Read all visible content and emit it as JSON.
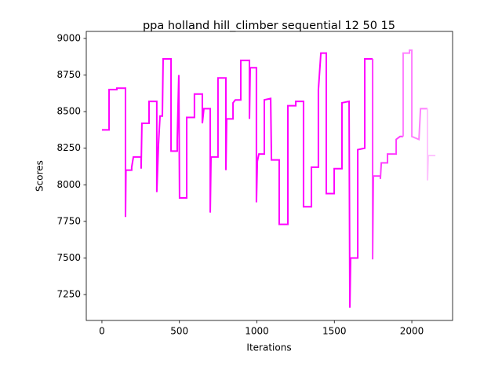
{
  "chart_data": {
    "type": "line",
    "title": "ppa holland hill_climber sequential 12 50 15",
    "xlabel": "Iterations",
    "ylabel": "Scores",
    "xlim": [
      -101,
      2263
    ],
    "ylim": [
      7073,
      9048
    ],
    "xticks": [
      0,
      500,
      1000,
      1500,
      2000
    ],
    "yticks": [
      7250,
      7500,
      7750,
      8000,
      8250,
      8500,
      8750,
      9000
    ],
    "grid": false,
    "series": [
      {
        "color": "#ff00ff",
        "x": [
          0,
          46,
          46,
          96,
          96,
          152,
          152,
          155,
          192,
          192,
          203,
          253,
          253,
          258,
          304,
          304,
          354,
          354,
          365,
          375,
          390,
          395,
          446,
          446,
          486,
          486,
          496,
          501,
          547,
          547,
          597,
          597,
          648,
          648,
          658,
          699,
          699,
          704,
          749,
          749,
          800,
          800,
          805,
          846,
          846,
          861,
          896,
          896,
          952,
          952,
          957,
          997,
          997,
          1003,
          1013,
          1048,
          1048,
          1089,
          1094,
          1144,
          1144,
          1200,
          1200,
          1251,
          1251,
          1301,
          1301,
          1352,
          1352,
          1397,
          1397,
          1413,
          1448,
          1448,
          1499,
          1499,
          1549,
          1549,
          1595,
          1600,
          1605,
          1651,
          1651,
          1696,
          1696,
          1747
        ],
        "values": [
          8375,
          8375,
          8650,
          8650,
          8660,
          8660,
          7780,
          8100,
          8100,
          8120,
          8190,
          8190,
          8110,
          8420,
          8420,
          8570,
          8570,
          7950,
          8280,
          8470,
          8470,
          8860,
          8860,
          8230,
          8230,
          8300,
          8750,
          7910,
          7910,
          8460,
          8460,
          8620,
          8620,
          8420,
          8520,
          8520,
          7810,
          8190,
          8190,
          8730,
          8730,
          8100,
          8450,
          8450,
          8560,
          8580,
          8580,
          8850,
          8850,
          8450,
          8800,
          8800,
          7880,
          8160,
          8210,
          8210,
          8580,
          8590,
          8170,
          8170,
          7730,
          7730,
          8540,
          8540,
          8570,
          8570,
          7850,
          7850,
          8120,
          8120,
          8650,
          8900,
          8900,
          7940,
          7940,
          8110,
          8110,
          8560,
          8570,
          7160,
          7500,
          7500,
          8240,
          8250,
          8860,
          8860
        ]
      },
      {
        "color": "#ff3cff",
        "x": [
          1747,
          1747,
          1752,
          1797,
          1797,
          1803,
          1843,
          1843,
          1899,
          1899,
          1924,
          1944
        ],
        "values": [
          8860,
          7490,
          8060,
          8060,
          8040,
          8150,
          8150,
          8210,
          8210,
          8310,
          8330,
          8330
        ]
      },
      {
        "color": "#ff80ff",
        "x": [
          1944,
          1944,
          1985,
          1985,
          2000,
          2000,
          2046,
          2056,
          2101
        ],
        "values": [
          8330,
          8900,
          8900,
          8920,
          8920,
          8330,
          8310,
          8520,
          8520
        ]
      },
      {
        "color": "#ffc4ff",
        "x": [
          2101,
          2101,
          2106,
          2152
        ],
        "values": [
          8520,
          8030,
          8200,
          8200
        ]
      }
    ]
  }
}
